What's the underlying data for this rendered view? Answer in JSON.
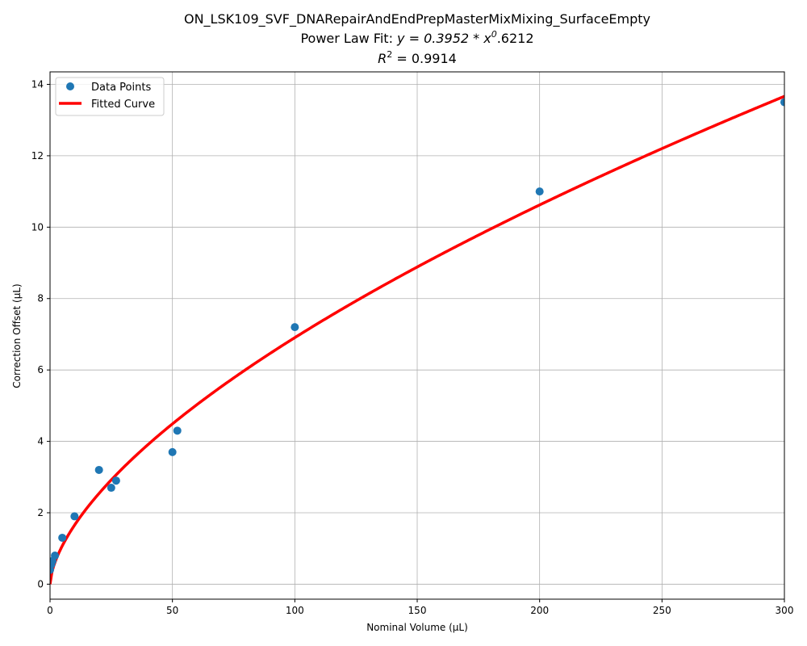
{
  "chart_data": {
    "type": "scatter",
    "title_line1": "ON_LSK109_SVF_DNARepairAndEndPrepMasterMixMixing_SurfaceEmpty",
    "title_line2_prefix": "Power Law Fit: ",
    "title_line2_equation": "y = 0.3952 * x",
    "title_line2_exponent": "0",
    "title_line2_suffix": ".6212",
    "title_line3_prefix": "R",
    "title_line3_superscript": "2",
    "title_line3_suffix": " = 0.9914",
    "xlabel": "Nominal Volume (µL)",
    "ylabel": "Correction Offset (µL)",
    "xlim": [
      0,
      300
    ],
    "ylim": [
      -0.42,
      14.35
    ],
    "xticks": [
      0,
      50,
      100,
      150,
      200,
      250,
      300
    ],
    "yticks": [
      0,
      2,
      4,
      6,
      8,
      10,
      12,
      14
    ],
    "grid": true,
    "legend_position": "top-left",
    "series": [
      {
        "name": "Data Points",
        "kind": "scatter",
        "color": "#1f77b4",
        "x": [
          0,
          0.5,
          1,
          2,
          5,
          10,
          20,
          25,
          27,
          50,
          52,
          100,
          200,
          300
        ],
        "y": [
          0.4,
          0.55,
          0.65,
          0.8,
          1.3,
          1.9,
          3.2,
          2.7,
          2.9,
          3.7,
          4.3,
          7.2,
          11.0,
          13.5
        ]
      },
      {
        "name": "Fitted Curve",
        "kind": "line",
        "color": "#ff0000",
        "a": 0.3952,
        "b": 0.6212
      }
    ]
  }
}
